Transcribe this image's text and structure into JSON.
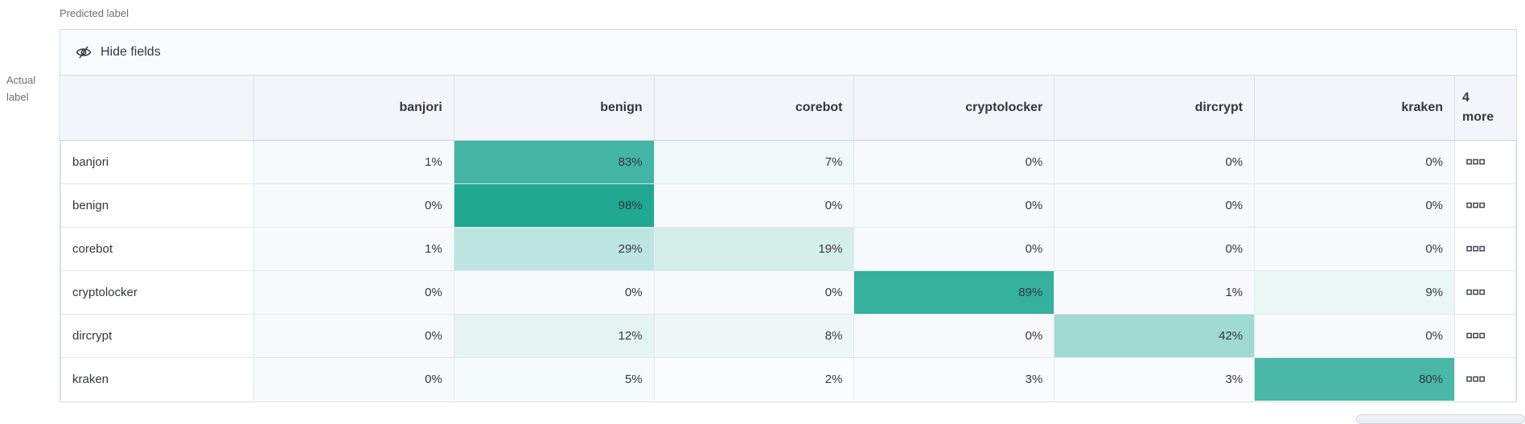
{
  "axes": {
    "predicted": "Predicted label",
    "actual_line1": "Actual",
    "actual_line2": "label"
  },
  "toolbar": {
    "hide_fields": "Hide fields"
  },
  "chart_data": {
    "type": "heatmap",
    "title": "",
    "x_label": "Predicted label",
    "y_label": "Actual label",
    "value_suffix": "%",
    "columns": [
      "banjori",
      "benign",
      "corebot",
      "cryptolocker",
      "dircrypt",
      "kraken"
    ],
    "more_column": {
      "count": "4",
      "word": "more",
      "hidden_columns": 4
    },
    "rows": [
      {
        "label": "banjori",
        "values": [
          1,
          83,
          7,
          0,
          0,
          0
        ]
      },
      {
        "label": "benign",
        "values": [
          0,
          98,
          0,
          0,
          0,
          0
        ]
      },
      {
        "label": "corebot",
        "values": [
          1,
          29,
          19,
          0,
          0,
          0
        ]
      },
      {
        "label": "cryptolocker",
        "values": [
          0,
          0,
          0,
          89,
          1,
          9
        ]
      },
      {
        "label": "dircrypt",
        "values": [
          0,
          12,
          8,
          0,
          42,
          0
        ]
      },
      {
        "label": "kraken",
        "values": [
          0,
          5,
          2,
          3,
          3,
          80
        ]
      }
    ]
  },
  "icons": {
    "toolbar_icon": "eye-closed-icon",
    "more_cell_icon": "boxes-horizontal-icon"
  },
  "colors": {
    "heat_base": "#1BA691",
    "cell_zero_bg": "#F8F9FC",
    "header_bg": "#F3F5FA",
    "header_border": "#D9E0EC",
    "header_bottom_border": "#C9D2E2",
    "toolbar_bg": "#FAFBFD",
    "border": "#D3DAE6",
    "grid_border": "#E2E7F1",
    "text": "#343741",
    "muted_text": "#69707D"
  }
}
